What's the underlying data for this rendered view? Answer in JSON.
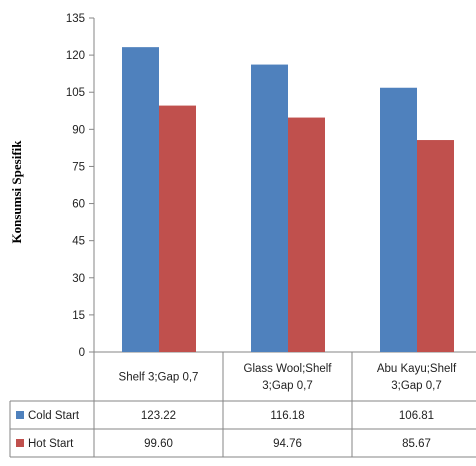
{
  "chart_data": {
    "type": "bar",
    "ylabel": "Konsumsi Spesifik",
    "ylim": [
      0,
      135
    ],
    "yticks": [
      0,
      15,
      30,
      45,
      60,
      75,
      90,
      105,
      120,
      135
    ],
    "grid": false,
    "legend": "table-left",
    "categories": [
      "Shelf 3;Gap 0,7",
      "Glass Wool;Shelf 3;Gap 0,7",
      "Abu Kayu;Shelf 3;Gap 0,7"
    ],
    "category_lines": [
      [
        "Shelf 3;Gap 0,7"
      ],
      [
        "Glass Wool;Shelf",
        "3;Gap 0,7"
      ],
      [
        "Abu Kayu;Shelf",
        "3;Gap 0,7"
      ]
    ],
    "series": [
      {
        "name": "Cold Start",
        "color": "#4f81bd",
        "values": [
          123.22,
          116.18,
          106.81
        ],
        "labels": [
          "123.22",
          "116.18",
          "106.81"
        ]
      },
      {
        "name": "Hot Start",
        "color": "#c0504d",
        "values": [
          99.6,
          94.76,
          85.67
        ],
        "labels": [
          "99.60",
          "94.76",
          "85.67"
        ]
      }
    ]
  }
}
